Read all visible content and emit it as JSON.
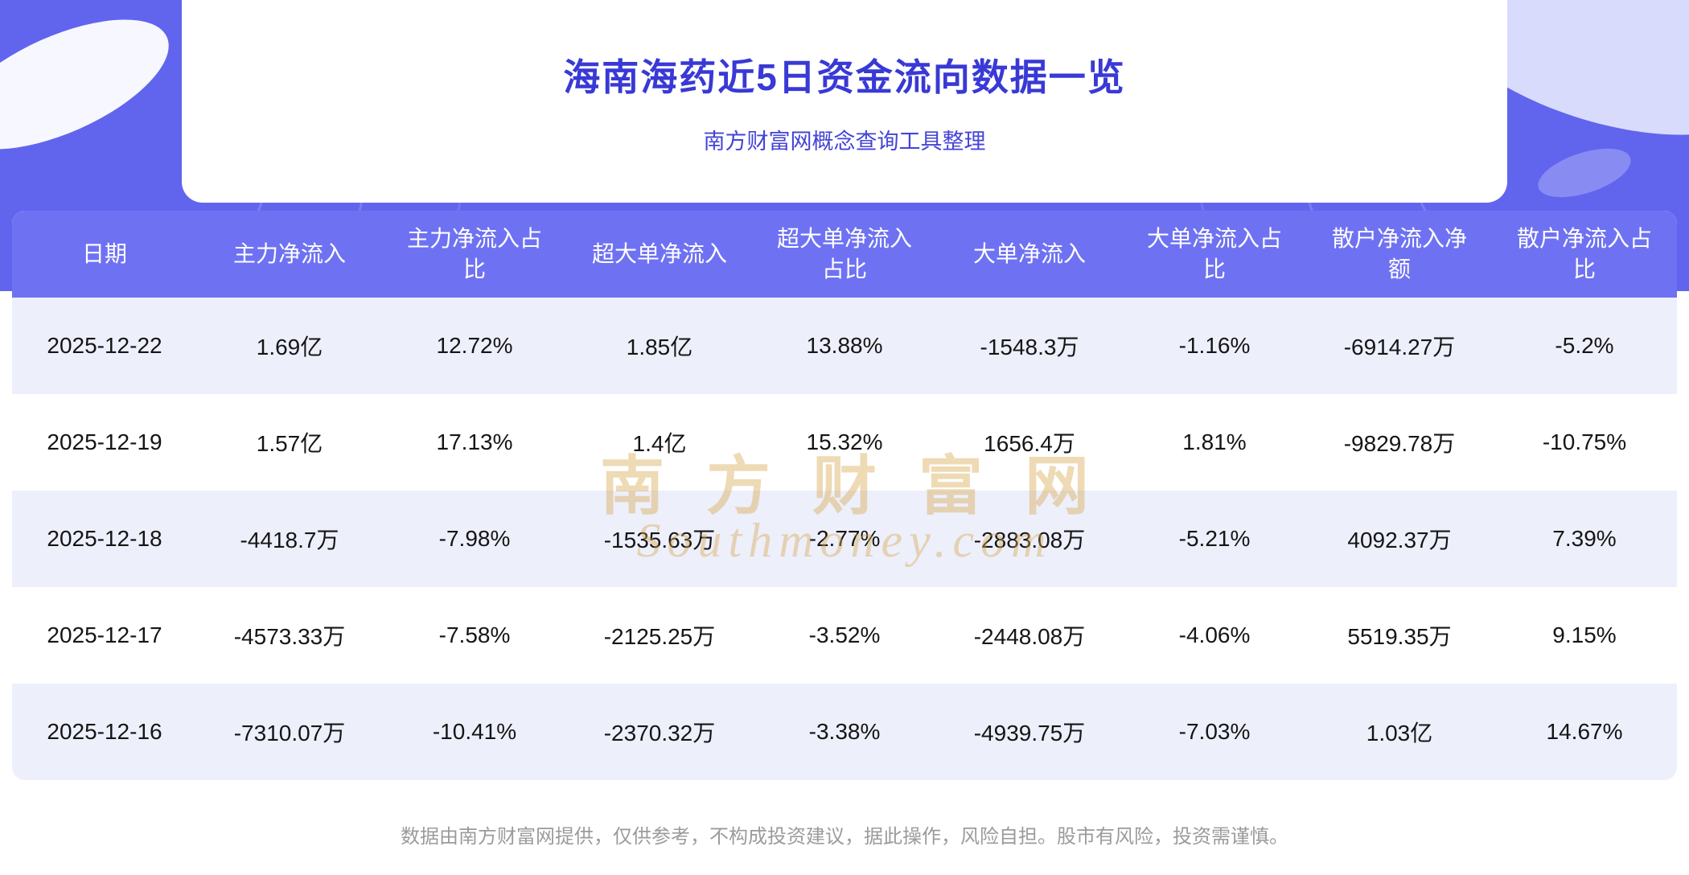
{
  "page": {
    "title": "海南海药近5日资金流向数据一览",
    "subtitle": "南方财富网概念查询工具整理",
    "footer": "数据由南方财富网提供，仅供参考，不构成投资建议，据此操作，风险自担。股市有风险，投资需谨慎。",
    "watermark": {
      "cn": "南方财富网",
      "en": "Southmoney.com"
    }
  },
  "colors": {
    "hero_background": "#6165ee",
    "title_text": "#3939d6",
    "table_header_background": "#6e72f2",
    "row_alt_background": "#edeffb",
    "watermark_gold": "#d9a84e",
    "footer_text": "#9b9b9b"
  },
  "table": {
    "headers": [
      "日期",
      "主力净流入",
      "主力净流入占比",
      "超大单净流入",
      "超大单净流入占比",
      "大单净流入",
      "大单净流入占比",
      "散户净流入净额",
      "散户净流入占比"
    ],
    "rows": [
      [
        "2025-12-22",
        "1.69亿",
        "12.72%",
        "1.85亿",
        "13.88%",
        "-1548.3万",
        "-1.16%",
        "-6914.27万",
        "-5.2%"
      ],
      [
        "2025-12-19",
        "1.57亿",
        "17.13%",
        "1.4亿",
        "15.32%",
        "1656.4万",
        "1.81%",
        "-9829.78万",
        "-10.75%"
      ],
      [
        "2025-12-18",
        "-4418.7万",
        "-7.98%",
        "-1535.63万",
        "-2.77%",
        "-2883.08万",
        "-5.21%",
        "4092.37万",
        "7.39%"
      ],
      [
        "2025-12-17",
        "-4573.33万",
        "-7.58%",
        "-2125.25万",
        "-3.52%",
        "-2448.08万",
        "-4.06%",
        "5519.35万",
        "9.15%"
      ],
      [
        "2025-12-16",
        "-7310.07万",
        "-10.41%",
        "-2370.32万",
        "-3.38%",
        "-4939.75万",
        "-7.03%",
        "1.03亿",
        "14.67%"
      ]
    ]
  }
}
